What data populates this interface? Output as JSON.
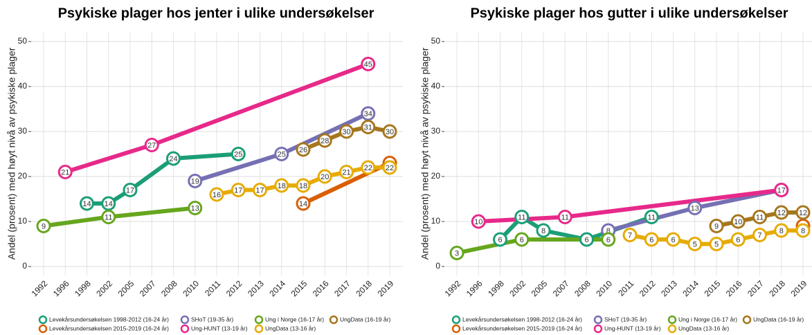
{
  "chart_data": [
    {
      "type": "line",
      "title": "Psykiske plager hos jenter i ulike undersøkelser",
      "y_label": "Andel (prosent) med høyt nivå av psykiske plager",
      "categories": [
        "1992",
        "1996",
        "1998",
        "2002",
        "2005",
        "2007",
        "2008",
        "2010",
        "2011",
        "2012",
        "2013",
        "2014",
        "2015",
        "2016",
        "2017",
        "2018",
        "2019"
      ],
      "ylim": [
        -2,
        52
      ],
      "yticks": [
        0,
        10,
        20,
        30,
        40,
        50
      ],
      "grid": true,
      "series": [
        {
          "name": "Levekårsundersøkelsen 1998-2012 (16-24 år)",
          "color": "#1b9e77",
          "x": [
            "1998",
            "2002",
            "2005",
            "2008",
            "2012"
          ],
          "values": [
            14,
            14,
            17,
            24,
            25
          ]
        },
        {
          "name": "Levekårsundersøkelsen 2015-2019 (16-24 år)",
          "color": "#d95f02",
          "x": [
            "2015",
            "2019"
          ],
          "values": [
            14,
            23
          ]
        },
        {
          "name": "SHoT (19-35 år)",
          "color": "#7570b3",
          "x": [
            "2010",
            "2014",
            "2018"
          ],
          "values": [
            19,
            25,
            34
          ]
        },
        {
          "name": "Ung-HUNT (13-19 år)",
          "color": "#e7298a",
          "x": [
            "1996",
            "2007",
            "2018"
          ],
          "values": [
            21,
            27,
            45
          ]
        },
        {
          "name": "Ung i Norge (16-17 år)",
          "color": "#66a61e",
          "x": [
            "1992",
            "2002",
            "2010"
          ],
          "values": [
            9,
            11,
            13
          ]
        },
        {
          "name": "UngData (13-16 år)",
          "color": "#e6ab02",
          "x": [
            "2011",
            "2012",
            "2013",
            "2014",
            "2015",
            "2016",
            "2017",
            "2018",
            "2019"
          ],
          "values": [
            16,
            17,
            17,
            18,
            18,
            20,
            21,
            22,
            22
          ]
        },
        {
          "name": "UngData (16-19 år)",
          "color": "#a6761d",
          "x": [
            "2015",
            "2016",
            "2017",
            "2018",
            "2019"
          ],
          "values": [
            26,
            28,
            30,
            31,
            30
          ]
        }
      ]
    },
    {
      "type": "line",
      "title": "Psykiske plager hos gutter i ulike undersøkelser",
      "y_label": "Andel (prosent) med høyt nivå av psykiske plager",
      "categories": [
        "1992",
        "1996",
        "1998",
        "2002",
        "2005",
        "2007",
        "2008",
        "2010",
        "2011",
        "2012",
        "2013",
        "2014",
        "2015",
        "2016",
        "2017",
        "2018",
        "2019"
      ],
      "ylim": [
        -2,
        52
      ],
      "yticks": [
        0,
        10,
        20,
        30,
        40,
        50
      ],
      "grid": true,
      "series": [
        {
          "name": "Levekårsundersøkelsen 1998-2012 (16-24 år)",
          "color": "#1b9e77",
          "x": [
            "1998",
            "2002",
            "2005",
            "2008",
            "2012"
          ],
          "values": [
            6,
            11,
            8,
            6,
            11
          ]
        },
        {
          "name": "Levekårsundersøkelsen 2015-2019 (16-24 år)",
          "color": "#d95f02",
          "x": [
            "2019"
          ],
          "values": [
            9
          ]
        },
        {
          "name": "SHoT (19-35 år)",
          "color": "#7570b3",
          "x": [
            "2010",
            "2014",
            "2018"
          ],
          "values": [
            8,
            13,
            17
          ]
        },
        {
          "name": "Ung-HUNT (13-19 år)",
          "color": "#e7298a",
          "x": [
            "1996",
            "2007",
            "2018"
          ],
          "values": [
            10,
            11,
            17
          ]
        },
        {
          "name": "Ung i Norge (16-17 år)",
          "color": "#66a61e",
          "x": [
            "1992",
            "2002",
            "2010"
          ],
          "values": [
            3,
            6,
            6
          ]
        },
        {
          "name": "UngData (13-16 år)",
          "color": "#e6ab02",
          "x": [
            "2011",
            "2012",
            "2013",
            "2014",
            "2015",
            "2016",
            "2017",
            "2018",
            "2019"
          ],
          "values": [
            7,
            6,
            6,
            5,
            5,
            6,
            7,
            8,
            8
          ]
        },
        {
          "name": "UngData (16-19 år)",
          "color": "#a6761d",
          "x": [
            "2015",
            "2016",
            "2017",
            "2018",
            "2019"
          ],
          "values": [
            9,
            10,
            11,
            12,
            12
          ]
        }
      ]
    }
  ]
}
